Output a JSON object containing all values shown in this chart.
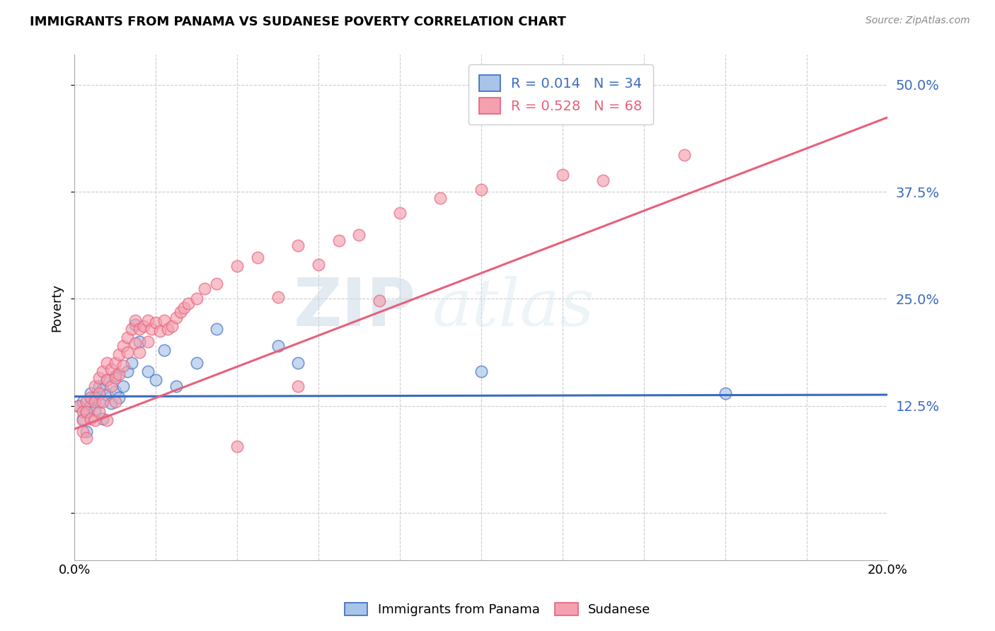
{
  "title": "IMMIGRANTS FROM PANAMA VS SUDANESE POVERTY CORRELATION CHART",
  "source": "Source: ZipAtlas.com",
  "ylabel": "Poverty",
  "yticks": [
    0.0,
    0.125,
    0.25,
    0.375,
    0.5
  ],
  "ytick_labels": [
    "",
    "12.5%",
    "25.0%",
    "37.5%",
    "50.0%"
  ],
  "xlim": [
    0.0,
    0.2
  ],
  "ylim": [
    -0.055,
    0.535
  ],
  "blue_R": 0.014,
  "blue_N": 34,
  "pink_R": 0.528,
  "pink_N": 68,
  "blue_color": "#a8c4e8",
  "pink_color": "#f4a0b0",
  "line_blue": "#3a6bbf",
  "line_pink": "#e8607a",
  "watermark_zip": "ZIP",
  "watermark_atlas": "atlas",
  "legend_label_blue": "Immigrants from Panama",
  "legend_label_pink": "Sudanese",
  "blue_line_x0": 0.0,
  "blue_line_x1": 0.2,
  "blue_line_y0": 0.136,
  "blue_line_y1": 0.138,
  "pink_line_x0": 0.0,
  "pink_line_x1": 0.2,
  "pink_line_y0": 0.098,
  "pink_line_y1": 0.462,
  "blue_scatter_x": [
    0.001,
    0.002,
    0.002,
    0.003,
    0.003,
    0.004,
    0.004,
    0.005,
    0.005,
    0.006,
    0.006,
    0.007,
    0.007,
    0.008,
    0.008,
    0.009,
    0.01,
    0.01,
    0.011,
    0.012,
    0.013,
    0.014,
    0.015,
    0.016,
    0.018,
    0.02,
    0.022,
    0.025,
    0.03,
    0.035,
    0.05,
    0.055,
    0.1,
    0.16
  ],
  "blue_scatter_y": [
    0.125,
    0.13,
    0.11,
    0.118,
    0.095,
    0.14,
    0.125,
    0.135,
    0.12,
    0.148,
    0.13,
    0.145,
    0.11,
    0.138,
    0.155,
    0.128,
    0.142,
    0.16,
    0.135,
    0.148,
    0.165,
    0.175,
    0.22,
    0.2,
    0.165,
    0.155,
    0.19,
    0.148,
    0.175,
    0.215,
    0.195,
    0.175,
    0.165,
    0.14
  ],
  "pink_scatter_x": [
    0.001,
    0.002,
    0.002,
    0.002,
    0.003,
    0.003,
    0.003,
    0.004,
    0.004,
    0.005,
    0.005,
    0.005,
    0.006,
    0.006,
    0.006,
    0.007,
    0.007,
    0.008,
    0.008,
    0.008,
    0.009,
    0.009,
    0.01,
    0.01,
    0.01,
    0.011,
    0.011,
    0.012,
    0.012,
    0.013,
    0.013,
    0.014,
    0.015,
    0.015,
    0.016,
    0.016,
    0.017,
    0.018,
    0.018,
    0.019,
    0.02,
    0.021,
    0.022,
    0.023,
    0.024,
    0.025,
    0.026,
    0.027,
    0.028,
    0.03,
    0.032,
    0.035,
    0.04,
    0.045,
    0.05,
    0.055,
    0.06,
    0.065,
    0.07,
    0.08,
    0.09,
    0.1,
    0.12,
    0.055,
    0.075,
    0.13,
    0.15,
    0.04
  ],
  "pink_scatter_y": [
    0.125,
    0.118,
    0.108,
    0.095,
    0.13,
    0.118,
    0.088,
    0.135,
    0.11,
    0.148,
    0.13,
    0.108,
    0.158,
    0.14,
    0.118,
    0.165,
    0.13,
    0.175,
    0.155,
    0.108,
    0.168,
    0.148,
    0.175,
    0.158,
    0.13,
    0.185,
    0.162,
    0.195,
    0.172,
    0.205,
    0.188,
    0.215,
    0.225,
    0.198,
    0.215,
    0.188,
    0.218,
    0.225,
    0.2,
    0.215,
    0.222,
    0.212,
    0.225,
    0.215,
    0.218,
    0.228,
    0.235,
    0.24,
    0.245,
    0.25,
    0.262,
    0.268,
    0.288,
    0.298,
    0.252,
    0.312,
    0.29,
    0.318,
    0.325,
    0.35,
    0.368,
    0.378,
    0.395,
    0.148,
    0.248,
    0.388,
    0.418,
    0.078
  ]
}
